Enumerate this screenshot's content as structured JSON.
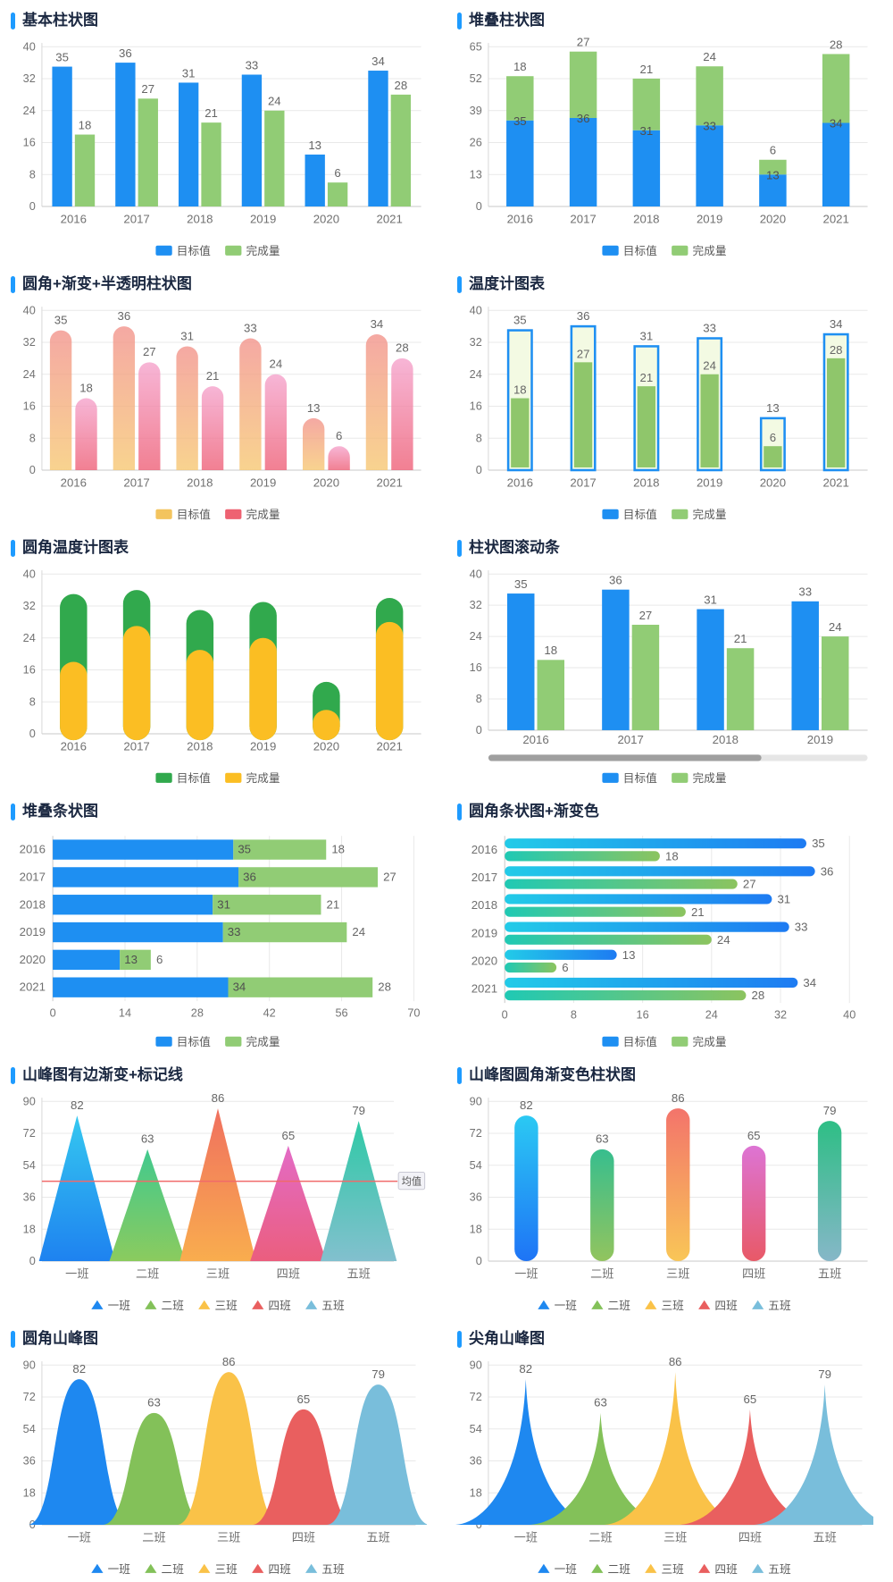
{
  "page": {
    "background": "#ffffff",
    "accent_color": "#1E9BFF"
  },
  "chart_data": [
    {
      "type": "bar-grouped",
      "title": "基本柱状图",
      "categories": [
        "2016",
        "2017",
        "2018",
        "2019",
        "2020",
        "2021"
      ],
      "series": [
        {
          "name": "目标值",
          "color": "#1E8FF2",
          "values": [
            35,
            36,
            31,
            33,
            13,
            34
          ]
        },
        {
          "name": "完成量",
          "color": "#91CC75",
          "values": [
            18,
            27,
            21,
            24,
            6,
            28
          ]
        }
      ],
      "ylim": [
        0,
        40
      ],
      "yticks": [
        0,
        8,
        16,
        24,
        32,
        40
      ],
      "legend": {
        "marker": "rect",
        "items": [
          {
            "label": "目标值",
            "color": "#1E8FF2"
          },
          {
            "label": "完成量",
            "color": "#91CC75"
          }
        ]
      }
    },
    {
      "type": "bar-stacked",
      "title": "堆叠柱状图",
      "categories": [
        "2016",
        "2017",
        "2018",
        "2019",
        "2020",
        "2021"
      ],
      "series": [
        {
          "name": "目标值",
          "color": "#1E8FF2",
          "values": [
            35,
            36,
            31,
            33,
            13,
            34
          ]
        },
        {
          "name": "完成量",
          "color": "#91CC75",
          "values": [
            18,
            27,
            21,
            24,
            6,
            28
          ]
        }
      ],
      "ylim": [
        0,
        65
      ],
      "yticks": [
        0,
        13,
        26,
        39,
        52,
        65
      ],
      "legend": {
        "marker": "rect",
        "items": [
          {
            "label": "目标值",
            "color": "#1E8FF2"
          },
          {
            "label": "完成量",
            "color": "#91CC75"
          }
        ]
      }
    },
    {
      "type": "bar-rounded-gradient",
      "title": "圆角+渐变+半透明柱状图",
      "categories": [
        "2016",
        "2017",
        "2018",
        "2019",
        "2020",
        "2021"
      ],
      "opacity": 0.8,
      "series": [
        {
          "name": "目标值",
          "gradient": [
            "#F2938C",
            "#F7C873"
          ],
          "values": [
            35,
            36,
            31,
            33,
            13,
            34
          ]
        },
        {
          "name": "完成量",
          "gradient": [
            "#F5A3CC",
            "#EE6077"
          ],
          "values": [
            18,
            27,
            21,
            24,
            6,
            28
          ]
        }
      ],
      "ylim": [
        0,
        40
      ],
      "yticks": [
        0,
        8,
        16,
        24,
        32,
        40
      ],
      "legend": {
        "marker": "rect",
        "items": [
          {
            "label": "目标值",
            "color": "#F3C45E"
          },
          {
            "label": "完成量",
            "color": "#EE6272"
          }
        ]
      }
    },
    {
      "type": "thermometer",
      "title": "温度计图表",
      "categories": [
        "2016",
        "2017",
        "2018",
        "2019",
        "2020",
        "2021"
      ],
      "outer": {
        "name": "目标值",
        "stroke": "#1E8FF2",
        "fill": "#F3FAE3",
        "values": [
          35,
          36,
          31,
          33,
          13,
          34
        ]
      },
      "inner": {
        "name": "完成量",
        "color": "#8FC66B",
        "values": [
          18,
          27,
          21,
          24,
          6,
          28
        ]
      },
      "ylim": [
        0,
        40
      ],
      "yticks": [
        0,
        8,
        16,
        24,
        32,
        40
      ],
      "legend": {
        "marker": "rect",
        "items": [
          {
            "label": "目标值",
            "color": "#1E8FF2"
          },
          {
            "label": "完成量",
            "color": "#91CC75"
          }
        ]
      }
    },
    {
      "type": "thermometer-rounded",
      "title": "圆角温度计图表",
      "categories": [
        "2016",
        "2017",
        "2018",
        "2019",
        "2020",
        "2021"
      ],
      "outer": {
        "name": "目标值",
        "color": "#31A94D",
        "values": [
          35,
          36,
          31,
          33,
          13,
          34
        ]
      },
      "inner": {
        "name": "完成量",
        "color": "#FBBE23",
        "values": [
          18,
          27,
          21,
          24,
          6,
          28
        ]
      },
      "ylim": [
        0,
        40
      ],
      "yticks": [
        0,
        8,
        16,
        24,
        32,
        40
      ],
      "legend": {
        "marker": "rect",
        "items": [
          {
            "label": "目标值",
            "color": "#31A94D"
          },
          {
            "label": "完成量",
            "color": "#FBBE23"
          }
        ]
      }
    },
    {
      "type": "bar-grouped-scroll",
      "title": "柱状图滚动条",
      "categories": [
        "2016",
        "2017",
        "2018",
        "2019"
      ],
      "series": [
        {
          "name": "目标值",
          "color": "#1E8FF2",
          "values": [
            35,
            36,
            31,
            33
          ]
        },
        {
          "name": "完成量",
          "color": "#91CC75",
          "values": [
            18,
            27,
            21,
            24
          ]
        }
      ],
      "ylim": [
        0,
        40
      ],
      "yticks": [
        0,
        8,
        16,
        24,
        32,
        40
      ],
      "scrollbar": {
        "track": "#E6E6E6",
        "thumb": "#9F9F9F",
        "fraction": 0.72
      },
      "legend": {
        "marker": "rect",
        "items": [
          {
            "label": "目标值",
            "color": "#1E8FF2"
          },
          {
            "label": "完成量",
            "color": "#91CC75"
          }
        ]
      }
    },
    {
      "type": "hbar-stacked",
      "title": "堆叠条状图",
      "categories": [
        "2016",
        "2017",
        "2018",
        "2019",
        "2020",
        "2021"
      ],
      "series": [
        {
          "name": "目标值",
          "color": "#1E8FF2",
          "values": [
            35,
            36,
            31,
            33,
            13,
            34
          ]
        },
        {
          "name": "完成量",
          "color": "#91CC75",
          "values": [
            18,
            27,
            21,
            24,
            6,
            28
          ]
        }
      ],
      "xlim": [
        0,
        70
      ],
      "xticks": [
        0,
        14,
        28,
        42,
        56,
        70
      ],
      "legend": {
        "marker": "rect",
        "items": [
          {
            "label": "目标值",
            "color": "#1E8FF2"
          },
          {
            "label": "完成量",
            "color": "#91CC75"
          }
        ]
      }
    },
    {
      "type": "hbar-rounded-gradient",
      "title": "圆角条状图+渐变色",
      "categories": [
        "2016",
        "2017",
        "2018",
        "2019",
        "2020",
        "2021"
      ],
      "series": [
        {
          "name": "目标值",
          "gradient": [
            "#22CBE8",
            "#1E7BF2"
          ],
          "values": [
            35,
            36,
            31,
            33,
            13,
            34
          ]
        },
        {
          "name": "完成量",
          "gradient": [
            "#1FC9B4",
            "#8CC45F"
          ],
          "values": [
            18,
            27,
            21,
            24,
            6,
            28
          ]
        }
      ],
      "xlim": [
        0,
        40
      ],
      "xticks": [
        0,
        8,
        16,
        24,
        32,
        40
      ],
      "legend": {
        "marker": "rect",
        "items": [
          {
            "label": "目标值",
            "color": "#1E8FF2"
          },
          {
            "label": "完成量",
            "color": "#91CC75"
          }
        ]
      }
    },
    {
      "type": "mountain-triangle",
      "title": "山峰图有边渐变+标记线",
      "categories": [
        "一班",
        "二班",
        "三班",
        "四班",
        "五班"
      ],
      "values": [
        82,
        63,
        86,
        65,
        79
      ],
      "gradients": [
        [
          "#35C8F0",
          "#1E82F0"
        ],
        [
          "#41C98E",
          "#8BCB5E"
        ],
        [
          "#F0705F",
          "#F9AD4E"
        ],
        [
          "#E36BC6",
          "#EB5E7E"
        ],
        [
          "#2FC9A6",
          "#82C0CE"
        ]
      ],
      "ylim": [
        0,
        90
      ],
      "yticks": [
        0,
        18,
        36,
        54,
        72,
        90
      ],
      "markline": {
        "value": 45,
        "label": "均值",
        "color": "#F06A6A"
      },
      "legend": {
        "marker": "triangle",
        "items": [
          {
            "label": "一班",
            "color": "#1E88F0"
          },
          {
            "label": "二班",
            "color": "#83C159"
          },
          {
            "label": "三班",
            "color": "#FAC248"
          },
          {
            "label": "四班",
            "color": "#E95F5F"
          },
          {
            "label": "五班",
            "color": "#79BEDB"
          }
        ]
      }
    },
    {
      "type": "capsule-gradient",
      "title": "山峰图圆角渐变色柱状图",
      "categories": [
        "一班",
        "二班",
        "三班",
        "四班",
        "五班"
      ],
      "values": [
        82,
        63,
        86,
        65,
        79
      ],
      "gradients": [
        [
          "#2BC9F3",
          "#1E74F6"
        ],
        [
          "#37BE8E",
          "#92C45E"
        ],
        [
          "#F3746B",
          "#F9C657"
        ],
        [
          "#DD74D4",
          "#E85967"
        ],
        [
          "#2EBE85",
          "#86B7C8"
        ]
      ],
      "ylim": [
        0,
        90
      ],
      "yticks": [
        0,
        18,
        36,
        54,
        72,
        90
      ],
      "legend": {
        "marker": "triangle",
        "items": [
          {
            "label": "一班",
            "color": "#1E88F0"
          },
          {
            "label": "二班",
            "color": "#83C159"
          },
          {
            "label": "三班",
            "color": "#FAC248"
          },
          {
            "label": "四班",
            "color": "#E95F5F"
          },
          {
            "label": "五班",
            "color": "#79BEDB"
          }
        ]
      }
    },
    {
      "type": "mountain-round",
      "title": "圆角山峰图",
      "categories": [
        "一班",
        "二班",
        "三班",
        "四班",
        "五班"
      ],
      "values": [
        82,
        63,
        86,
        65,
        79
      ],
      "colors": [
        "#1E88F0",
        "#83C159",
        "#FAC248",
        "#E95F5F",
        "#79BEDB"
      ],
      "ylim": [
        0,
        90
      ],
      "yticks": [
        0,
        18,
        36,
        54,
        72,
        90
      ],
      "legend": {
        "marker": "triangle",
        "items": [
          {
            "label": "一班",
            "color": "#1E88F0"
          },
          {
            "label": "二班",
            "color": "#83C159"
          },
          {
            "label": "三班",
            "color": "#FAC248"
          },
          {
            "label": "四班",
            "color": "#E95F5F"
          },
          {
            "label": "五班",
            "color": "#79BEDB"
          }
        ]
      }
    },
    {
      "type": "mountain-sharp",
      "title": "尖角山峰图",
      "categories": [
        "一班",
        "二班",
        "三班",
        "四班",
        "五班"
      ],
      "values": [
        82,
        63,
        86,
        65,
        79
      ],
      "colors": [
        "#1E88F0",
        "#83C159",
        "#FAC248",
        "#E95F5F",
        "#79BEDB"
      ],
      "ylim": [
        0,
        90
      ],
      "yticks": [
        0,
        18,
        36,
        54,
        72,
        90
      ],
      "legend": {
        "marker": "triangle",
        "items": [
          {
            "label": "一班",
            "color": "#1E88F0"
          },
          {
            "label": "二班",
            "color": "#83C159"
          },
          {
            "label": "三班",
            "color": "#FAC248"
          },
          {
            "label": "四班",
            "color": "#E95F5F"
          },
          {
            "label": "五班",
            "color": "#79BEDB"
          }
        ]
      }
    }
  ]
}
